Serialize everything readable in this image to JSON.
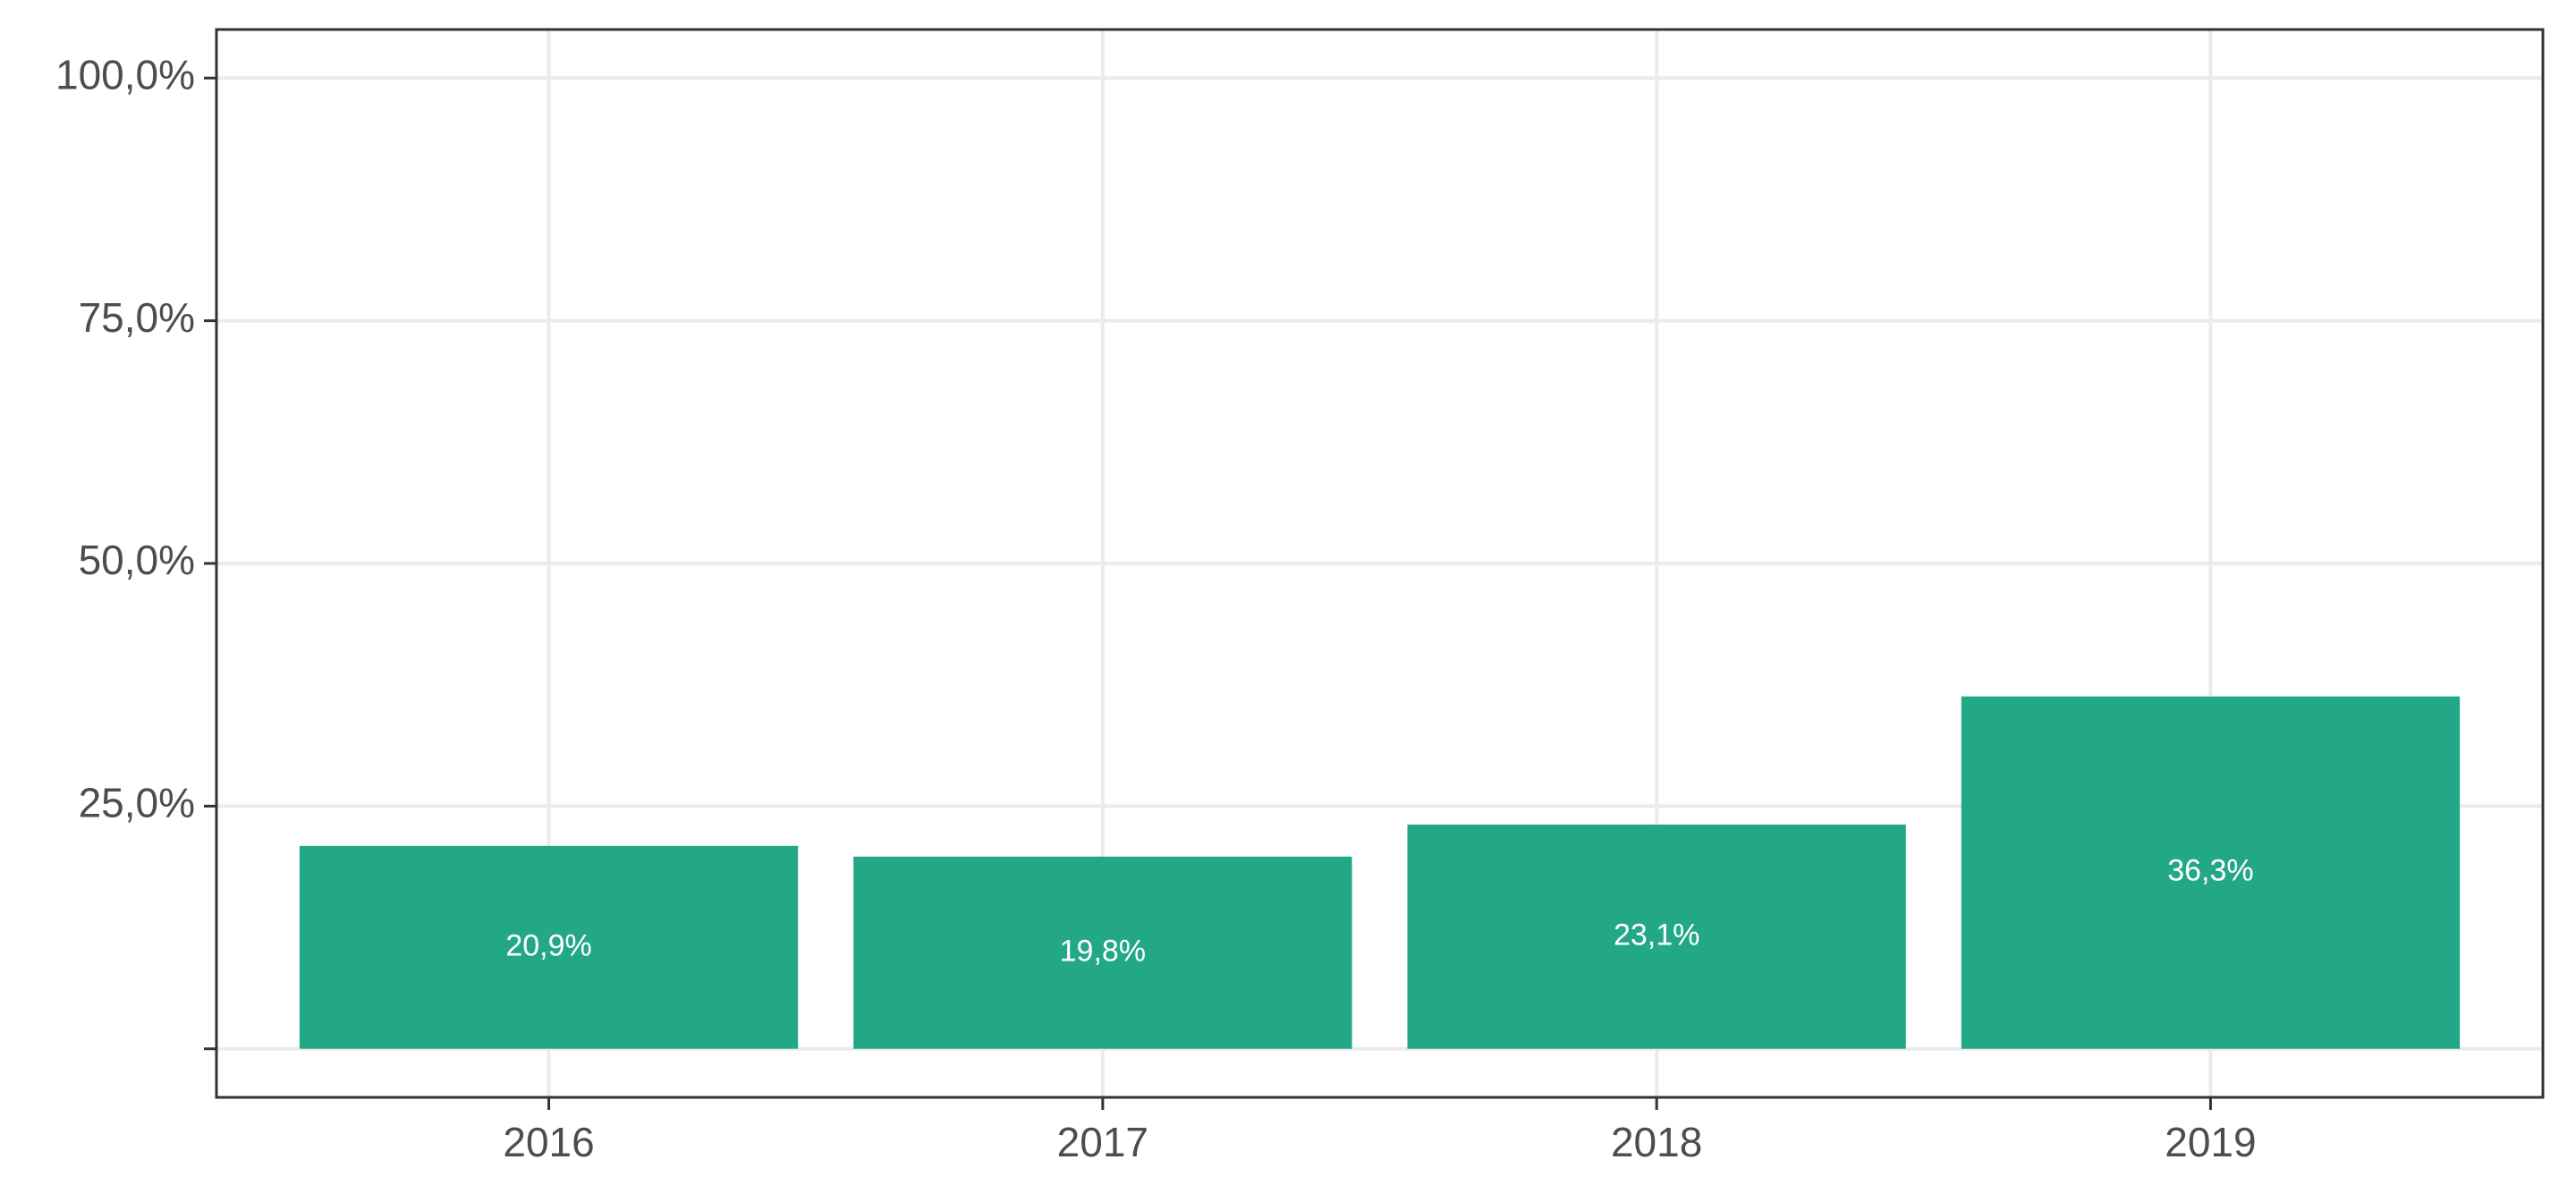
{
  "chart_data": {
    "type": "bar",
    "categories": [
      "2016",
      "2017",
      "2018",
      "2019"
    ],
    "values": [
      20.9,
      19.8,
      23.1,
      36.3
    ],
    "value_labels": [
      "20,9%",
      "19,8%",
      "23,1%",
      "36,3%"
    ],
    "color": "#23a887",
    "ylim": [
      -5,
      105
    ],
    "yticks": [
      {
        "value": 0,
        "label": null
      },
      {
        "value": 25,
        "label": "25,0%"
      },
      {
        "value": 50,
        "label": "50,0%"
      },
      {
        "value": 75,
        "label": "75,0%"
      },
      {
        "value": 100,
        "label": "100,0%"
      }
    ],
    "grid": true
  }
}
